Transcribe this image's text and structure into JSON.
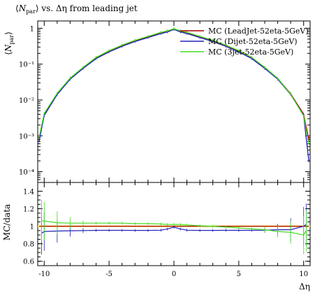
{
  "chart_data": [
    {
      "type": "line",
      "title": "⟨N_par⟩ vs. Δη from leading jet",
      "title_parts": {
        "prefix": "⟨",
        "symbol": "N",
        "subscript": "par",
        "suffix": "⟩ vs. Δη from leading jet"
      },
      "ylabel": "⟨N_par⟩",
      "ylabel_parts": {
        "prefix": "⟨",
        "symbol": "N",
        "subscript": "par",
        "suffix": "⟩"
      },
      "y_scale": "log",
      "ylim": [
        5e-05,
        1.6
      ],
      "xlim": [
        -10.5,
        10.5
      ],
      "y_ticks": [
        {
          "value": 1,
          "label": "1"
        },
        {
          "value": 0.1,
          "label": "10⁻¹"
        },
        {
          "value": 0.01,
          "label": "10⁻²"
        },
        {
          "value": 0.001,
          "label": "10⁻³"
        },
        {
          "value": 0.0001,
          "label": "10⁻⁴"
        }
      ],
      "legend_position": "top-right",
      "series": [
        {
          "name": "MC (LeadJet-52eta-5GeV)",
          "color": "#aa0000",
          "x": [
            -10.4,
            -10,
            -9,
            -8,
            -7,
            -6,
            -5,
            -4,
            -3,
            -2,
            -1,
            -0.5,
            0,
            0.5,
            1,
            2,
            3,
            4,
            5,
            6,
            7,
            8,
            9,
            10,
            10.4
          ],
          "y": [
            0.0008,
            0.004,
            0.015,
            0.04,
            0.08,
            0.15,
            0.23,
            0.33,
            0.45,
            0.58,
            0.75,
            0.83,
            0.95,
            0.83,
            0.75,
            0.58,
            0.45,
            0.33,
            0.23,
            0.15,
            0.08,
            0.04,
            0.015,
            0.004,
            0.0008
          ]
        },
        {
          "name": "MC (Dijet-52eta-5GeV)",
          "color": "#2222bb",
          "x": [
            -10.4,
            -10,
            -9,
            -8,
            -7,
            -6,
            -5,
            -4,
            -3,
            -2,
            -1,
            -0.5,
            0,
            0.5,
            1,
            2,
            3,
            4,
            5,
            6,
            7,
            8,
            9,
            10,
            10.4
          ],
          "y": [
            0.0007,
            0.0037,
            0.0142,
            0.038,
            0.076,
            0.143,
            0.219,
            0.314,
            0.428,
            0.551,
            0.713,
            0.79,
            0.935,
            0.79,
            0.713,
            0.551,
            0.428,
            0.314,
            0.219,
            0.143,
            0.076,
            0.038,
            0.0142,
            0.0037,
            0.0002
          ]
        },
        {
          "name": "MC (3jet-52eta-5GeV)",
          "color": "#44dd22",
          "x": [
            -10.4,
            -10,
            -9,
            -8,
            -7,
            -6,
            -5,
            -4,
            -3,
            -2,
            -1,
            -0.5,
            0,
            0.5,
            1,
            2,
            3,
            4,
            5,
            6,
            7,
            8,
            9,
            10,
            10.4
          ],
          "y": [
            0.0009,
            0.0042,
            0.0155,
            0.041,
            0.082,
            0.155,
            0.237,
            0.34,
            0.463,
            0.597,
            0.77,
            0.85,
            0.97,
            0.85,
            0.77,
            0.597,
            0.463,
            0.34,
            0.237,
            0.155,
            0.082,
            0.04,
            0.0145,
            0.0036,
            0.0006
          ]
        }
      ]
    },
    {
      "type": "line",
      "ylabel": "MC/data",
      "xlabel": "Δη",
      "xlim": [
        -10.5,
        10.5
      ],
      "ylim": [
        0.55,
        1.5
      ],
      "x_ticks": [
        {
          "value": -10,
          "label": "-10"
        },
        {
          "value": -5,
          "label": "-5"
        },
        {
          "value": 0,
          "label": "0"
        },
        {
          "value": 5,
          "label": "5"
        },
        {
          "value": 10,
          "label": "10"
        }
      ],
      "y_ticks": [
        {
          "value": 1.4,
          "label": "1.4"
        },
        {
          "value": 1.2,
          "label": "1.2"
        },
        {
          "value": 1,
          "label": "1"
        },
        {
          "value": 0.8,
          "label": "0.8"
        },
        {
          "value": 0.6,
          "label": "0.6"
        }
      ],
      "reference_band_color": "#ffee33",
      "series": [
        {
          "name": "MC (LeadJet-52eta-5GeV)",
          "color": "#aa0000",
          "x": [
            -10.4,
            10.4
          ],
          "y": [
            1.0,
            1.0
          ]
        },
        {
          "name": "MC (Dijet-52eta-5GeV)",
          "color": "#2222bb",
          "x": [
            -10.2,
            -10,
            -9,
            -8,
            -7,
            -6,
            -5,
            -4,
            -3,
            -2,
            -1,
            -0.5,
            0,
            0.5,
            1,
            2,
            3,
            4,
            5,
            6,
            7,
            8,
            9,
            10,
            10.2
          ],
          "y": [
            0.92,
            0.94,
            0.945,
            0.948,
            0.95,
            0.953,
            0.953,
            0.953,
            0.952,
            0.952,
            0.955,
            0.968,
            0.99,
            0.968,
            0.955,
            0.952,
            0.952,
            0.953,
            0.953,
            0.953,
            0.955,
            0.96,
            0.96,
            1.0,
            1.02
          ]
        },
        {
          "name": "MC (3jet-52eta-5GeV)",
          "color": "#44dd22",
          "x": [
            -10.2,
            -10,
            -9,
            -8,
            -7,
            -6,
            -5,
            -4,
            -3,
            -2,
            -1,
            -0.5,
            0,
            0.5,
            1,
            2,
            3,
            4,
            5,
            6,
            7,
            8,
            9,
            10,
            10.2
          ],
          "y": [
            1.06,
            1.06,
            1.04,
            1.035,
            1.035,
            1.035,
            1.035,
            1.035,
            1.03,
            1.03,
            1.025,
            1.02,
            1.02,
            1.02,
            1.015,
            1.005,
            1.0,
            0.99,
            0.98,
            0.97,
            0.96,
            0.94,
            0.93,
            0.9,
            0.95
          ]
        }
      ]
    }
  ]
}
